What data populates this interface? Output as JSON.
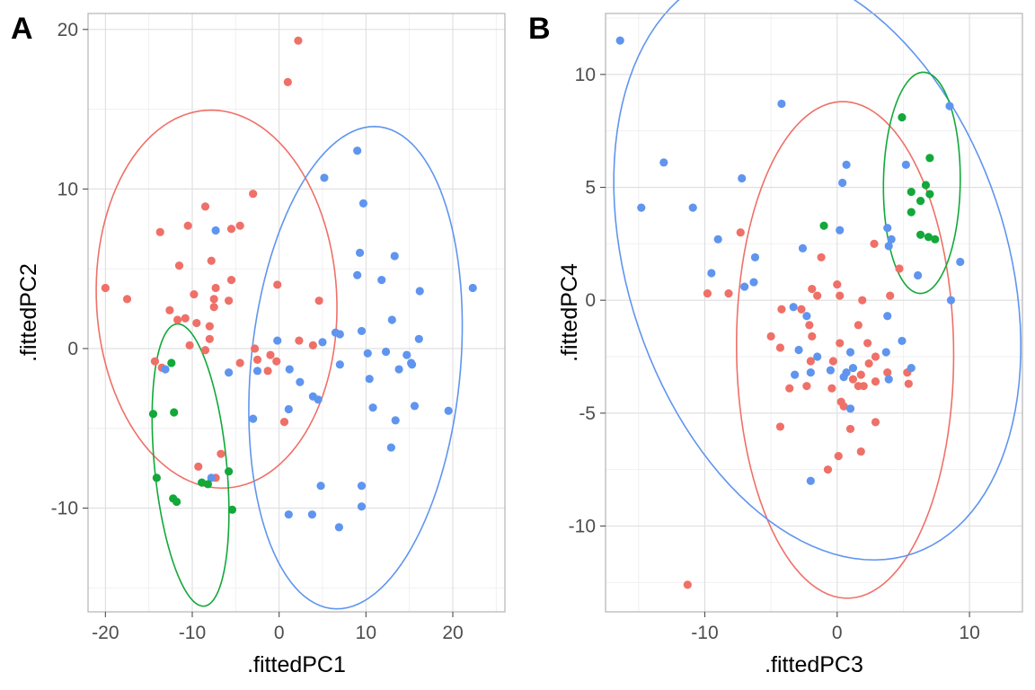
{
  "colors": {
    "red": "#ef7068",
    "blue": "#5f95ef",
    "green": "#12a83a"
  },
  "chart_data": [
    {
      "type": "scatter",
      "panel_label": "A",
      "xlabel": ".fittedPC1",
      "ylabel": ".fittedPC2",
      "xlim": [
        -22,
        26
      ],
      "ylim": [
        -16.5,
        21.0
      ],
      "xticks": [
        -20,
        -10,
        0,
        10,
        20
      ],
      "xtick_labels": [
        "-20",
        "-10",
        "0",
        "10",
        "20"
      ],
      "yticks": [
        -10,
        0,
        10,
        20
      ],
      "ytick_labels": [
        "-10",
        "0",
        "10",
        "20"
      ],
      "grid": true,
      "series": [
        {
          "color": "red",
          "points": [
            [
              2.2,
              19.3
            ],
            [
              1.0,
              16.7
            ],
            [
              -3.0,
              9.7
            ],
            [
              -8.5,
              8.9
            ],
            [
              -10.5,
              7.7
            ],
            [
              -4.5,
              7.7
            ],
            [
              -5.5,
              7.5
            ],
            [
              -13.7,
              7.3
            ],
            [
              -0.2,
              4.0
            ],
            [
              -11.5,
              5.2
            ],
            [
              -7.8,
              5.5
            ],
            [
              -5.5,
              4.3
            ],
            [
              -20.0,
              3.8
            ],
            [
              -17.5,
              3.1
            ],
            [
              -9.8,
              3.4
            ],
            [
              -7.3,
              3.8
            ],
            [
              -7.5,
              3.1
            ],
            [
              -5.8,
              3.0
            ],
            [
              4.6,
              3.0
            ],
            [
              -12.6,
              2.4
            ],
            [
              -7.5,
              2.6
            ],
            [
              -11.7,
              1.8
            ],
            [
              -10.8,
              1.9
            ],
            [
              -9.5,
              1.6
            ],
            [
              -8.0,
              1.4
            ],
            [
              -8.0,
              0.6
            ],
            [
              -8.5,
              -0.1
            ],
            [
              -10.3,
              0.2
            ],
            [
              -2.8,
              0.0
            ],
            [
              -1.0,
              -0.4
            ],
            [
              -0.3,
              -0.8
            ],
            [
              -2.5,
              -0.7
            ],
            [
              -4.5,
              -0.9
            ],
            [
              2.3,
              0.5
            ],
            [
              3.9,
              0.2
            ],
            [
              -14.3,
              -0.8
            ],
            [
              -13.5,
              -1.2
            ],
            [
              -1.3,
              -1.4
            ],
            [
              0.6,
              -4.6
            ],
            [
              -6.7,
              -6.6
            ],
            [
              -9.3,
              -7.4
            ],
            [
              -7.3,
              -8.1
            ]
          ]
        },
        {
          "color": "blue",
          "points": [
            [
              9.0,
              12.4
            ],
            [
              5.2,
              10.7
            ],
            [
              9.7,
              9.1
            ],
            [
              -7.3,
              7.4
            ],
            [
              9.3,
              6.0
            ],
            [
              13.3,
              5.8
            ],
            [
              9.0,
              4.6
            ],
            [
              11.8,
              4.3
            ],
            [
              16.2,
              3.6
            ],
            [
              22.3,
              3.8
            ],
            [
              13.0,
              1.8
            ],
            [
              6.5,
              1.0
            ],
            [
              7.0,
              0.9
            ],
            [
              9.5,
              1.1
            ],
            [
              16.1,
              0.6
            ],
            [
              -0.2,
              0.5
            ],
            [
              5.0,
              0.4
            ],
            [
              10.2,
              -0.3
            ],
            [
              12.3,
              -0.2
            ],
            [
              14.7,
              -0.4
            ],
            [
              15.2,
              -0.9
            ],
            [
              15.3,
              -1.0
            ],
            [
              7.0,
              -1.0
            ],
            [
              1.2,
              -1.3
            ],
            [
              -2.5,
              -1.4
            ],
            [
              -5.8,
              -1.5
            ],
            [
              -13.1,
              -1.3
            ],
            [
              13.8,
              -1.3
            ],
            [
              2.4,
              -2.1
            ],
            [
              10.4,
              -1.9
            ],
            [
              15.6,
              -3.6
            ],
            [
              10.8,
              -3.7
            ],
            [
              19.5,
              -3.9
            ],
            [
              3.9,
              -3.0
            ],
            [
              4.5,
              -3.2
            ],
            [
              1.1,
              -3.8
            ],
            [
              -3.0,
              -4.4
            ],
            [
              13.4,
              -4.5
            ],
            [
              12.9,
              -6.2
            ],
            [
              -7.8,
              -8.1
            ],
            [
              4.8,
              -8.6
            ],
            [
              9.5,
              -8.6
            ],
            [
              9.5,
              -9.9
            ],
            [
              1.1,
              -10.4
            ],
            [
              3.8,
              -10.4
            ],
            [
              6.9,
              -11.2
            ]
          ]
        },
        {
          "color": "green",
          "points": [
            [
              -12.4,
              -0.9
            ],
            [
              -14.5,
              -4.1
            ],
            [
              -12.1,
              -4.0
            ],
            [
              -14.1,
              -8.1
            ],
            [
              -8.9,
              -8.4
            ],
            [
              -8.2,
              -8.5
            ],
            [
              -5.8,
              -7.7
            ],
            [
              -12.2,
              -9.4
            ],
            [
              -11.8,
              -9.6
            ],
            [
              -5.4,
              -10.1
            ]
          ]
        }
      ],
      "ellipses": [
        {
          "color": "red",
          "center": [
            -7.2,
            3.1
          ],
          "rx": 11.8,
          "ry": 13.9,
          "angle": 82
        },
        {
          "color": "blue",
          "center": [
            8.8,
            -1.2
          ],
          "rx": 15.5,
          "ry": 11.8,
          "angle": 70
        },
        {
          "color": "green",
          "center": [
            -10.2,
            -7.3
          ],
          "rx": 4.1,
          "ry": 9.0,
          "angle": 12
        }
      ]
    },
    {
      "type": "scatter",
      "panel_label": "B",
      "xlabel": ".fittedPC3",
      "ylabel": ".fittedPC4",
      "xlim": [
        -17.5,
        14.0
      ],
      "ylim": [
        -13.8,
        12.7
      ],
      "xticks": [
        -10,
        0,
        10
      ],
      "xtick_labels": [
        "-10",
        "0",
        "10"
      ],
      "yticks": [
        -10,
        -5,
        0,
        5,
        10
      ],
      "ytick_labels": [
        "-10",
        "-5",
        "0",
        "5",
        "10"
      ],
      "grid": true,
      "series": [
        {
          "color": "red",
          "points": [
            [
              -7.3,
              3.0
            ],
            [
              -1.2,
              1.9
            ],
            [
              2.8,
              2.5
            ],
            [
              4.7,
              1.4
            ],
            [
              -9.8,
              0.3
            ],
            [
              -8.2,
              0.3
            ],
            [
              -1.5,
              0.2
            ],
            [
              0.0,
              0.7
            ],
            [
              -1.9,
              0.5
            ],
            [
              0.2,
              0.2
            ],
            [
              1.9,
              0.0
            ],
            [
              4.0,
              0.2
            ],
            [
              -4.2,
              -0.4
            ],
            [
              -2.7,
              -0.4
            ],
            [
              -2.1,
              -1.1
            ],
            [
              -5.0,
              -1.6
            ],
            [
              -4.3,
              -2.1
            ],
            [
              -1.9,
              -1.6
            ],
            [
              1.6,
              -1.1
            ],
            [
              2.3,
              -1.9
            ],
            [
              2.9,
              -2.5
            ],
            [
              0.2,
              -1.9
            ],
            [
              -2.0,
              -2.7
            ],
            [
              -0.3,
              -2.7
            ],
            [
              2.4,
              -2.8
            ],
            [
              3.8,
              -3.2
            ],
            [
              5.3,
              -3.2
            ],
            [
              1.8,
              -3.3
            ],
            [
              2.9,
              -3.6
            ],
            [
              1.2,
              -3.5
            ],
            [
              1.6,
              -3.8
            ],
            [
              2.0,
              -3.8
            ],
            [
              -3.6,
              -3.9
            ],
            [
              -2.3,
              -3.8
            ],
            [
              -0.4,
              -3.9
            ],
            [
              5.4,
              -3.7
            ],
            [
              0.3,
              -4.5
            ],
            [
              0.5,
              -4.7
            ],
            [
              -4.3,
              -5.6
            ],
            [
              2.9,
              -5.4
            ],
            [
              1.0,
              -5.7
            ],
            [
              1.8,
              -6.7
            ],
            [
              0.1,
              -6.9
            ],
            [
              -0.7,
              -7.5
            ],
            [
              -11.3,
              -12.6
            ]
          ]
        },
        {
          "color": "blue",
          "points": [
            [
              -16.4,
              11.5
            ],
            [
              -4.2,
              8.7
            ],
            [
              8.5,
              8.6
            ],
            [
              -13.1,
              6.1
            ],
            [
              0.7,
              6.0
            ],
            [
              5.2,
              6.0
            ],
            [
              -7.2,
              5.4
            ],
            [
              0.4,
              5.2
            ],
            [
              -14.8,
              4.1
            ],
            [
              -10.9,
              4.1
            ],
            [
              3.8,
              3.2
            ],
            [
              0.2,
              3.1
            ],
            [
              4.1,
              2.7
            ],
            [
              -9.0,
              2.7
            ],
            [
              -2.6,
              2.3
            ],
            [
              3.9,
              2.4
            ],
            [
              -6.2,
              1.9
            ],
            [
              9.3,
              1.7
            ],
            [
              -9.5,
              1.2
            ],
            [
              6.1,
              1.1
            ],
            [
              -6.3,
              0.8
            ],
            [
              -7.0,
              0.6
            ],
            [
              8.6,
              0.0
            ],
            [
              -3.3,
              -0.3
            ],
            [
              -2.3,
              -0.7
            ],
            [
              3.8,
              -0.7
            ],
            [
              4.9,
              -1.8
            ],
            [
              -2.9,
              -2.2
            ],
            [
              -1.5,
              -2.5
            ],
            [
              3.7,
              -2.3
            ],
            [
              1.0,
              -2.3
            ],
            [
              -2.0,
              -3.2
            ],
            [
              -3.2,
              -3.3
            ],
            [
              -0.5,
              -3.1
            ],
            [
              0.7,
              -3.2
            ],
            [
              1.2,
              -3.0
            ],
            [
              0.5,
              -3.4
            ],
            [
              5.6,
              -3.0
            ],
            [
              3.9,
              -3.5
            ],
            [
              1.0,
              -4.8
            ],
            [
              -2.0,
              -8.0
            ]
          ]
        },
        {
          "color": "green",
          "points": [
            [
              4.9,
              8.1
            ],
            [
              7.0,
              6.3
            ],
            [
              6.7,
              5.1
            ],
            [
              5.6,
              4.8
            ],
            [
              7.0,
              4.7
            ],
            [
              6.3,
              4.4
            ],
            [
              5.6,
              3.9
            ],
            [
              -1.0,
              3.3
            ],
            [
              6.3,
              2.9
            ],
            [
              6.9,
              2.8
            ],
            [
              7.4,
              2.7
            ]
          ]
        }
      ],
      "ellipses": [
        {
          "color": "red",
          "center": [
            0.6,
            -2.2
          ],
          "rx": 8.2,
          "ry": 11.0,
          "angle": 2
        },
        {
          "color": "blue",
          "center": [
            -1.5,
            1.6
          ],
          "rx": 16.4,
          "ry": 11.8,
          "angle": -30
        },
        {
          "color": "green",
          "center": [
            6.4,
            5.2
          ],
          "rx": 2.9,
          "ry": 4.9,
          "angle": -2
        }
      ]
    }
  ]
}
